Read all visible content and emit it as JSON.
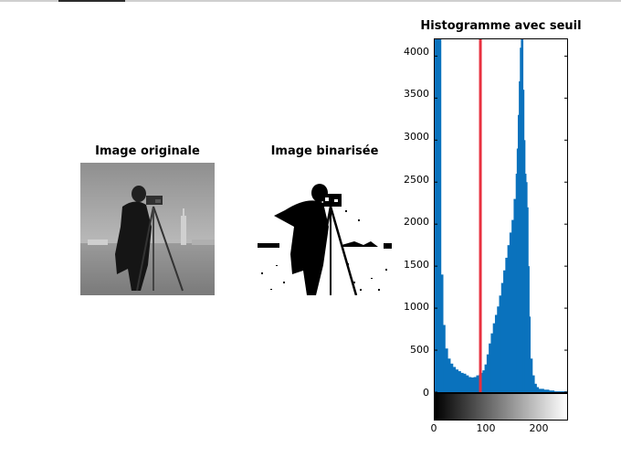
{
  "figure": {
    "panel_original_title": "Image originale",
    "panel_binarized_title": "Image binarisée",
    "panel_histogram_title": "Histogramme avec seuil"
  },
  "chart_data": {
    "type": "bar",
    "title": "Histogramme avec seuil",
    "xlabel": "",
    "ylabel": "",
    "xlim": [
      0,
      255
    ],
    "ylim": [
      0,
      4200
    ],
    "xticks": [
      "0",
      "100",
      "200"
    ],
    "yticks": [
      "0",
      "500",
      "1000",
      "1500",
      "2000",
      "2500",
      "3000",
      "3500",
      "4000"
    ],
    "threshold": 88,
    "threshold_color": "#e8303f",
    "bar_color": "#0a72bd",
    "colorbar": "grayscale",
    "grid": false,
    "bins": [
      [
        0,
        4200
      ],
      [
        2,
        4200
      ],
      [
        6,
        4200
      ],
      [
        10,
        4200
      ],
      [
        12,
        1400
      ],
      [
        16,
        800
      ],
      [
        20,
        520
      ],
      [
        25,
        400
      ],
      [
        30,
        340
      ],
      [
        35,
        300
      ],
      [
        40,
        270
      ],
      [
        45,
        250
      ],
      [
        50,
        230
      ],
      [
        55,
        220
      ],
      [
        60,
        200
      ],
      [
        65,
        180
      ],
      [
        70,
        175
      ],
      [
        75,
        180
      ],
      [
        80,
        200
      ],
      [
        85,
        210
      ],
      [
        88,
        230
      ],
      [
        92,
        260
      ],
      [
        96,
        330
      ],
      [
        100,
        450
      ],
      [
        104,
        580
      ],
      [
        108,
        700
      ],
      [
        112,
        820
      ],
      [
        116,
        920
      ],
      [
        120,
        1020
      ],
      [
        124,
        1150
      ],
      [
        128,
        1300
      ],
      [
        132,
        1450
      ],
      [
        136,
        1600
      ],
      [
        140,
        1750
      ],
      [
        144,
        1900
      ],
      [
        148,
        2050
      ],
      [
        152,
        2300
      ],
      [
        156,
        2600
      ],
      [
        158,
        2900
      ],
      [
        160,
        3300
      ],
      [
        162,
        3700
      ],
      [
        164,
        4100
      ],
      [
        166,
        4200
      ],
      [
        168,
        4200
      ],
      [
        170,
        3600
      ],
      [
        172,
        3000
      ],
      [
        174,
        2600
      ],
      [
        176,
        2500
      ],
      [
        178,
        2200
      ],
      [
        180,
        1500
      ],
      [
        182,
        900
      ],
      [
        184,
        400
      ],
      [
        188,
        200
      ],
      [
        192,
        100
      ],
      [
        196,
        60
      ],
      [
        200,
        40
      ],
      [
        210,
        30
      ],
      [
        220,
        20
      ],
      [
        230,
        10
      ],
      [
        240,
        10
      ],
      [
        255,
        0
      ]
    ]
  }
}
